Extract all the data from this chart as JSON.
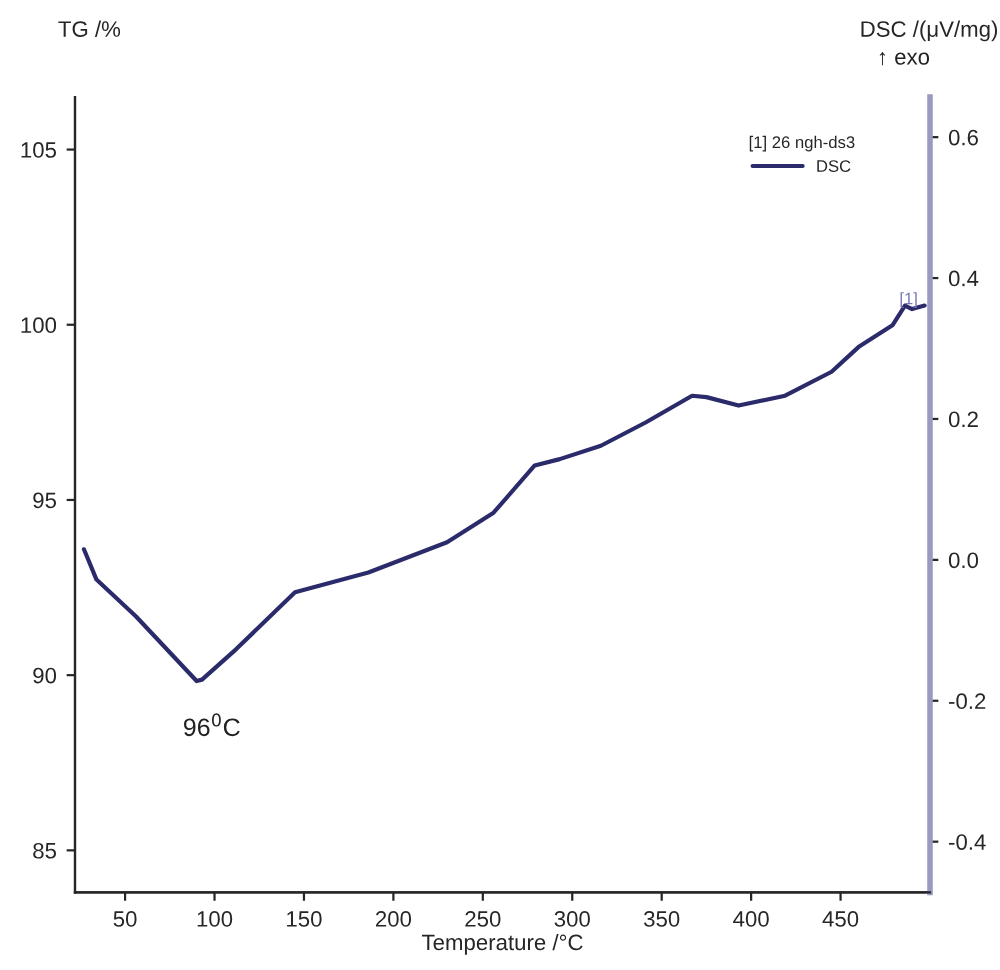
{
  "chart_data": {
    "type": "line",
    "xlabel": "Temperature /°C",
    "ylabel": "TG /%",
    "y2label": "DSC /(μV/mg)",
    "legend_title": "[1] 26 ngh-ds3",
    "legend": "top right",
    "grid": false,
    "marker": "none",
    "line_style": "solid",
    "xlim": [
      22,
      500
    ],
    "xticks": [
      50,
      100,
      150,
      200,
      250,
      300,
      350,
      400,
      450
    ],
    "ylim": [
      83.8,
      106.5
    ],
    "yticks": [
      85,
      90,
      95,
      100,
      105
    ],
    "y2lim": [
      -0.472,
      0.657
    ],
    "y2ticks": [
      {
        "value": -0.4,
        "label": "-0.4"
      },
      {
        "value": -0.2,
        "label": "-0.2"
      },
      {
        "value": 0.0,
        "label": "0.0"
      },
      {
        "value": 0.2,
        "label": "0.2"
      },
      {
        "value": 0.4,
        "label": "0.4"
      },
      {
        "value": 0.6,
        "label": "0.6"
      }
    ],
    "annotations": [
      "96$^{0}$C",
      "↑ exo",
      "[1]"
    ],
    "series": [
      {
        "name": "DSC",
        "color": "#2b2b6b",
        "axis": "y2",
        "x": [
          27,
          34,
          56,
          90,
          93,
          112,
          145,
          186,
          230,
          256,
          279,
          293,
          316,
          341,
          367,
          375,
          393,
          419,
          445,
          460,
          479,
          486,
          490,
          497
        ],
        "values": [
          0.015,
          -0.028,
          -0.08,
          -0.172,
          -0.17,
          -0.127,
          -0.046,
          -0.018,
          0.025,
          0.067,
          0.134,
          0.143,
          0.162,
          0.195,
          0.233,
          0.231,
          0.219,
          0.233,
          0.267,
          0.302,
          0.333,
          0.361,
          0.356,
          0.361
        ]
      }
    ]
  }
}
